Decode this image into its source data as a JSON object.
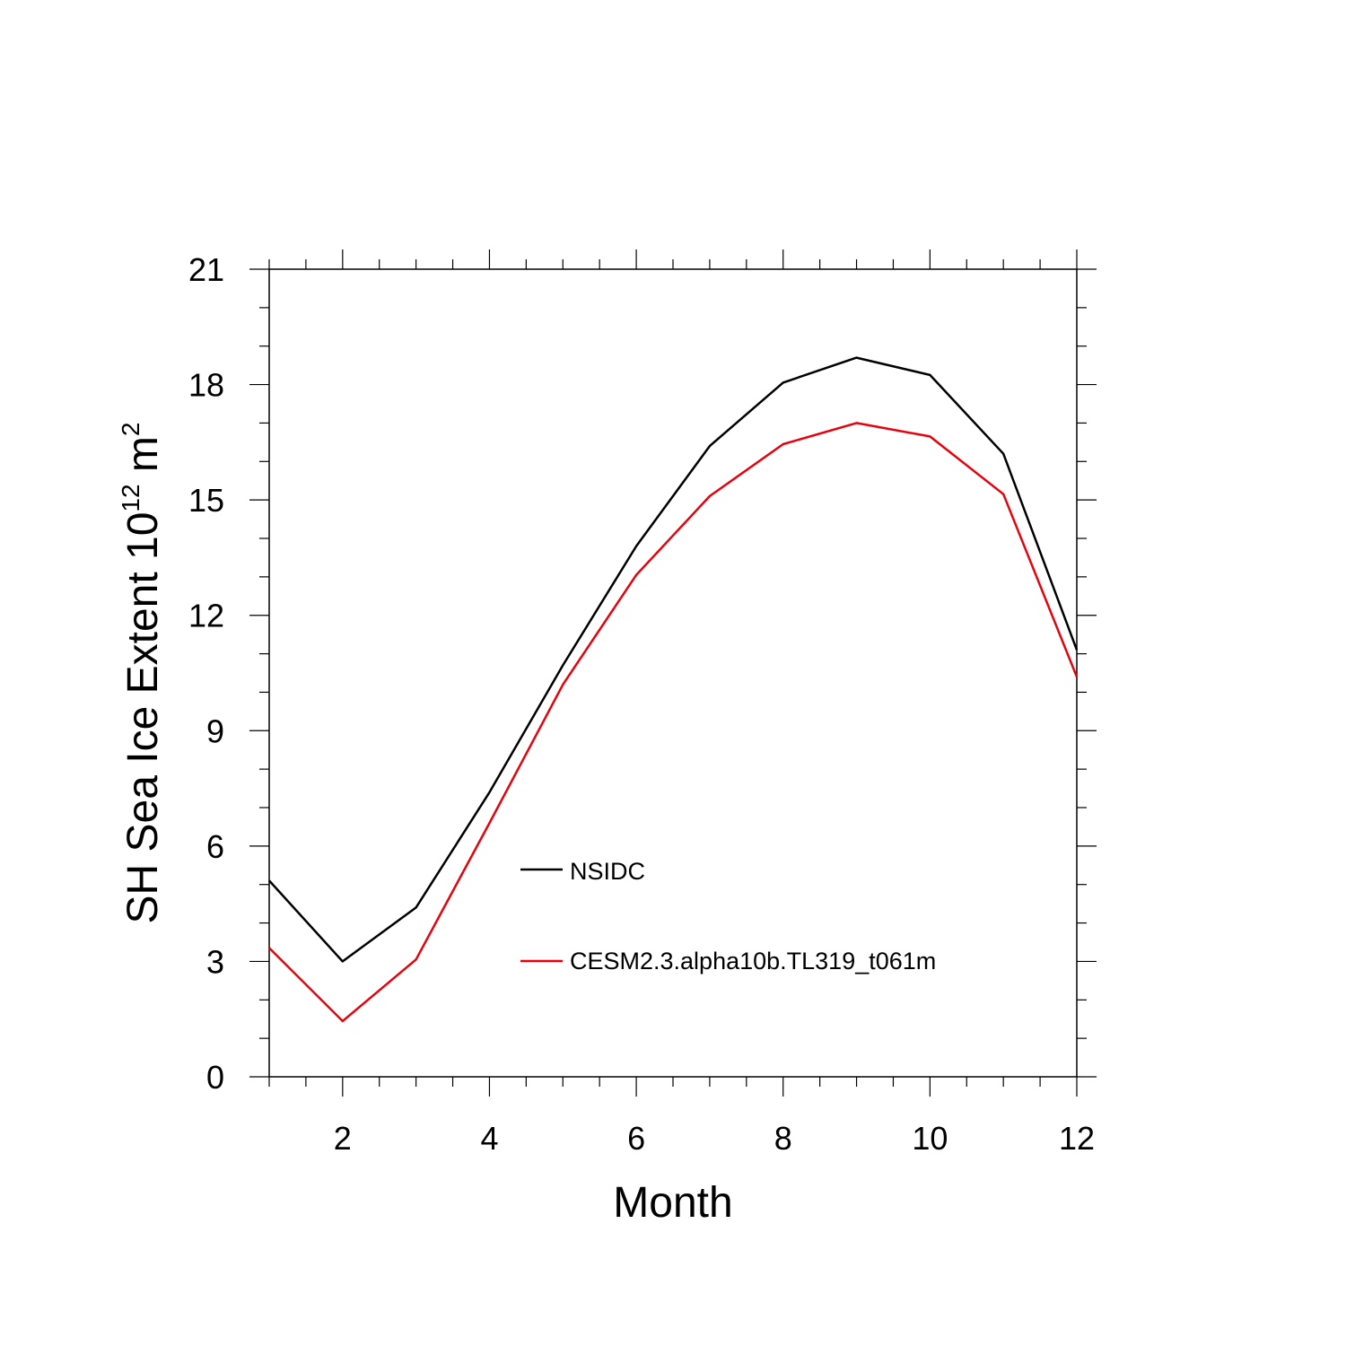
{
  "chart_data": {
    "type": "line",
    "xlabel": "Month",
    "ylabel": {
      "text": "SH Sea Ice Extent 10",
      "exponent": "12",
      "unit": " m",
      "unit_exponent": "2"
    },
    "x": [
      1,
      2,
      3,
      4,
      5,
      6,
      7,
      8,
      9,
      10,
      11,
      12
    ],
    "xlim": [
      1,
      12
    ],
    "ylim": [
      0,
      21
    ],
    "xticks": [
      2,
      4,
      6,
      8,
      10,
      12
    ],
    "yticks": [
      0,
      3,
      6,
      9,
      12,
      15,
      18,
      21
    ],
    "grid": false,
    "legend_placement": "center-left inside plot",
    "series": [
      {
        "name": "NSIDC",
        "color": "#000000",
        "values": [
          5.1,
          3.0,
          4.4,
          7.4,
          10.7,
          13.8,
          16.4,
          18.05,
          18.7,
          18.25,
          16.2,
          11.1
        ]
      },
      {
        "name": "CESM2.3.alpha10b.TL319_t061m",
        "color": "#e8000b",
        "values": [
          3.35,
          1.45,
          3.05,
          6.6,
          10.2,
          13.05,
          15.1,
          16.45,
          17.0,
          16.65,
          15.15,
          10.4
        ]
      }
    ]
  }
}
